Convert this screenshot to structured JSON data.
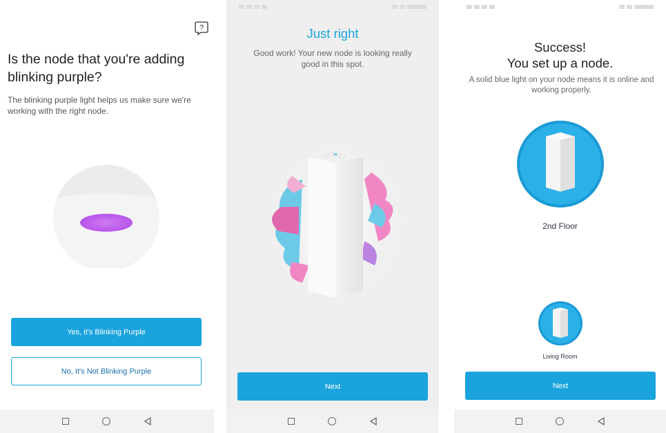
{
  "screen1": {
    "title": "Is the node that you're adding blinking purple?",
    "description": "The blinking purple light helps us make sure we're working with the right node.",
    "yes_button": "Yes, it's Blinking Purple",
    "no_button": "No, It's Not Blinking Purple",
    "help_icon": "help-question-icon",
    "light_color": "#c96cf0"
  },
  "screen2": {
    "title": "Just right",
    "description": "Good work! Your new node is looking really good in this spot.",
    "next_button": "Next"
  },
  "screen3": {
    "title_line1": "Success!",
    "title_line2": "You set up a node.",
    "description": "A solid blue light on your node means it is online and working properly.",
    "primary_node_label": "2nd Floor",
    "secondary_node_label": "Living Room",
    "next_button": "Next"
  },
  "nav": {
    "icons": [
      "recent-apps-icon",
      "home-icon",
      "back-icon"
    ]
  },
  "colors": {
    "accent": "#1aa3dc",
    "title_blue": "#1aa3dc"
  }
}
